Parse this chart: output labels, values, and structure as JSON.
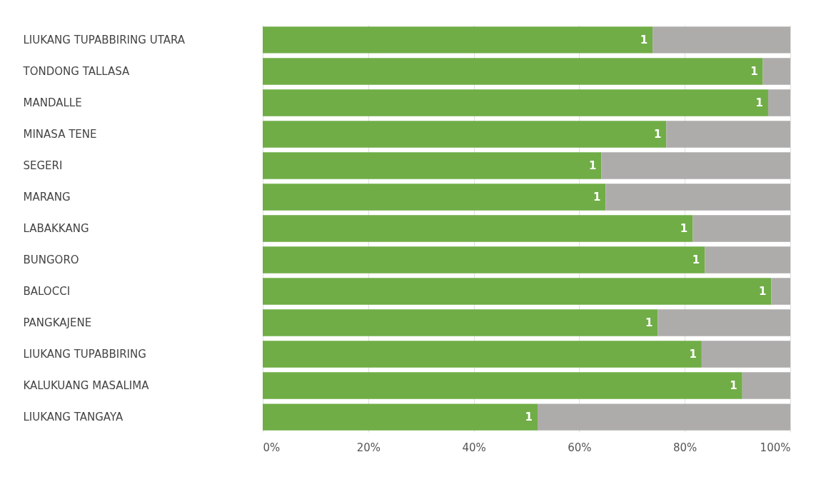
{
  "chart_data": {
    "type": "bar",
    "orientation": "horizontal",
    "stacked": true,
    "categories": [
      "LIUKANG TUPABBIRING UTARA",
      "TONDONG TALLASA",
      "MANDALLE",
      "MINASA TENE",
      "SEGERI",
      "MARANG",
      "LABAKKANG",
      "BUNGORO",
      "BALOCCI",
      "PANGKAJENE",
      "LIUKANG TUPABBIRING",
      "KALUKUANG MASALIMA",
      "LIUKANG TANGAYA"
    ],
    "series": [
      {
        "color": "#70ad47",
        "values": [
          73.9,
          94.8,
          95.8,
          76.5,
          64.2,
          65.0,
          81.5,
          83.8,
          96.4,
          74.9,
          83.2,
          90.9,
          52.1
        ]
      },
      {
        "color": "#aeacaa",
        "values": [
          26.1,
          5.2,
          4.2,
          23.5,
          35.8,
          35.0,
          18.5,
          16.2,
          3.6,
          25.1,
          16.8,
          9.1,
          47.9
        ]
      }
    ],
    "annotations": [
      {
        "text": "1",
        "x": 73.9,
        "y": "LIUKANG TUPABBIRING UTARA"
      },
      {
        "text": "1",
        "x": 94.8,
        "y": "TONDONG TALLASA"
      },
      {
        "text": "1",
        "x": 95.8,
        "y": "MANDALLE"
      },
      {
        "text": "1",
        "x": 76.5,
        "y": "MINASA TENE"
      },
      {
        "text": "1",
        "x": 64.2,
        "y": "SEGERI"
      },
      {
        "text": "1",
        "x": 65.0,
        "y": "MARANG"
      },
      {
        "text": "1",
        "x": 81.5,
        "y": "LABAKKANG"
      },
      {
        "text": "1",
        "x": 83.8,
        "y": "BUNGORO"
      },
      {
        "text": "1",
        "x": 96.4,
        "y": "BALOCCI"
      },
      {
        "text": "1",
        "x": 74.9,
        "y": "PANGKAJENE"
      },
      {
        "text": "1",
        "x": 83.2,
        "y": "LIUKANG TUPABBIRING"
      },
      {
        "text": "1",
        "x": 90.9,
        "y": "KALUKUANG MASALIMA"
      },
      {
        "text": "1",
        "x": 52.1,
        "y": "LIUKANG TANGAYA"
      }
    ],
    "xlim": [
      0,
      100
    ],
    "xticks": [
      {
        "value": 0,
        "label": "0%"
      },
      {
        "value": 20,
        "label": "20%"
      },
      {
        "value": 40,
        "label": "40%"
      },
      {
        "value": 60,
        "label": "60%"
      },
      {
        "value": 80,
        "label": "80%"
      },
      {
        "value": 100,
        "label": "100%"
      }
    ],
    "grid": "x",
    "legend": false
  }
}
